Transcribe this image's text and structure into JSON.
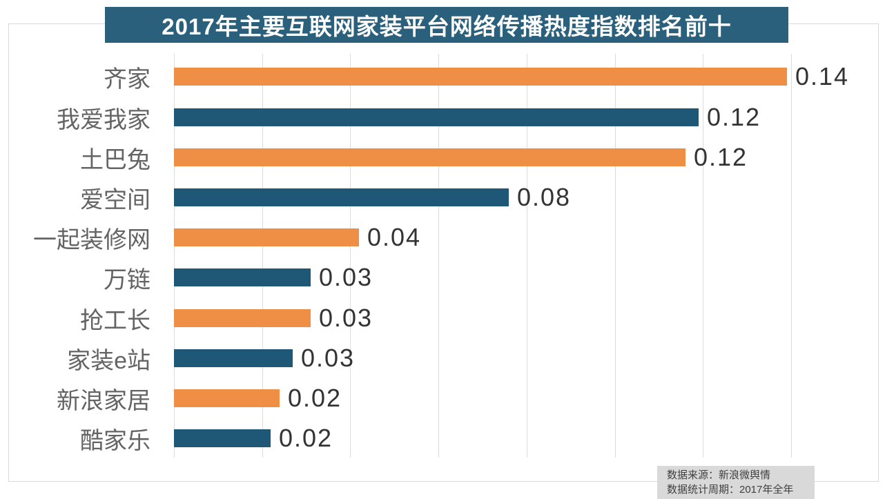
{
  "title": "2017年主要互联网家装平台网络传播热度指数排名前十",
  "source_note": {
    "line1": "数据来源：新浪微舆情",
    "line2": "数据统计周期：2017年全年"
  },
  "colors": {
    "title_bg": "#2A607C",
    "title_text": "#FFFFFF",
    "bar_orange": "#EF8F45",
    "bar_blue": "#1F5876",
    "grid_line": "#DCDCDC",
    "frame_border": "#D9D9D9",
    "category_label": "#646464",
    "value_label": "#333333",
    "source_bg": "#D9D9D9",
    "source_text": "#404040"
  },
  "chart_data": {
    "type": "bar",
    "orientation": "horizontal",
    "title": "2017年主要互联网家装平台网络传播热度指数排名前十",
    "categories": [
      "齐家",
      "我爱我家",
      "土巴兔",
      "爱空间",
      "一起装修网",
      "万链",
      "抢工长",
      "家装e站",
      "新浪家居",
      "酷家乐"
    ],
    "values": [
      0.14,
      0.12,
      0.12,
      0.08,
      0.04,
      0.03,
      0.03,
      0.03,
      0.02,
      0.02
    ],
    "value_labels": [
      "0.14",
      "0.12",
      "0.12",
      "0.08",
      "0.04",
      "0.03",
      "0.03",
      "0.03",
      "0.02",
      "0.02"
    ],
    "values_precise": [
      0.139,
      0.119,
      0.116,
      0.076,
      0.042,
      0.031,
      0.031,
      0.027,
      0.024,
      0.022
    ],
    "bar_colors": [
      "#EF8F45",
      "#1F5876",
      "#EF8F45",
      "#1F5876",
      "#EF8F45",
      "#1F5876",
      "#EF8F45",
      "#1F5876",
      "#EF8F45",
      "#1F5876"
    ],
    "xlim": [
      0,
      0.14
    ],
    "x_ticks": [
      0,
      0.02,
      0.04,
      0.06,
      0.08,
      0.1,
      0.12,
      0.14
    ],
    "x_tick_labels_visible": false,
    "ylabel": "",
    "xlabel": "",
    "grid": "vertical-only",
    "legend": "none",
    "value_label_position": "outside-end"
  }
}
